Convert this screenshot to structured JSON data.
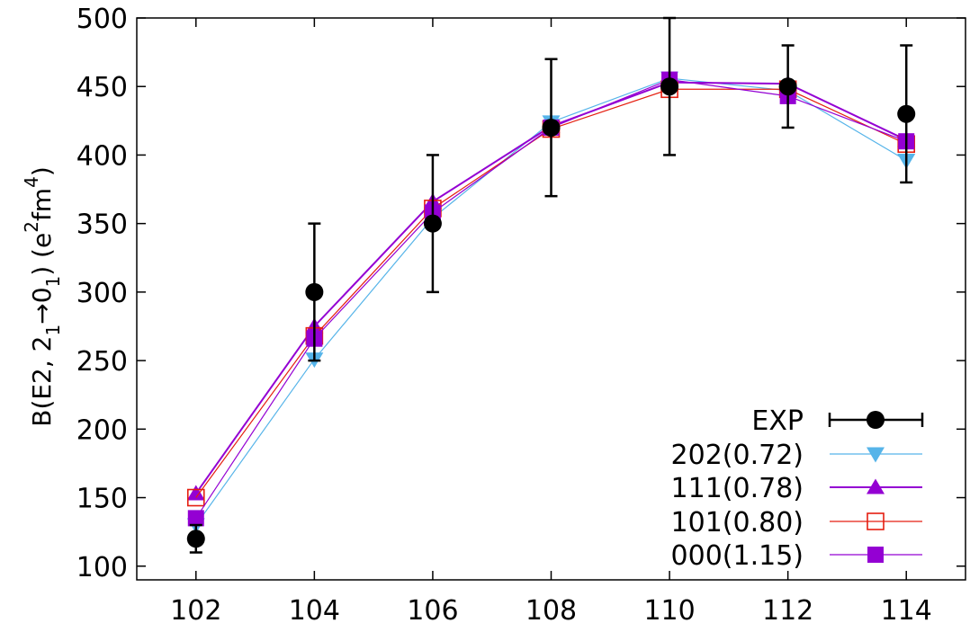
{
  "chart_data": {
    "type": "line",
    "title": "",
    "xlabel": "",
    "ylabel": {
      "base": "B(E2, 2",
      "sub1": "1",
      "arrow": "→0",
      "sub2": "1",
      "mid": ") (e",
      "sup1": "2",
      "fm": "fm",
      "sup2": "4",
      "end": ")"
    },
    "xlim": [
      101,
      115
    ],
    "ylim": [
      90,
      500
    ],
    "x": [
      102,
      104,
      106,
      108,
      110,
      112,
      114
    ],
    "xticks": [
      102,
      104,
      106,
      108,
      110,
      112,
      114
    ],
    "yticks": [
      100,
      150,
      200,
      250,
      300,
      350,
      400,
      450,
      500
    ],
    "grid": false,
    "legend_position": "bottom-right",
    "series": [
      {
        "name": "EXP",
        "color": "#000000",
        "marker": "circle",
        "errorbars": true,
        "line": false,
        "values": [
          120,
          300,
          350,
          420,
          450,
          450,
          430
        ],
        "errors": [
          10,
          50,
          50,
          50,
          50,
          30,
          50
        ]
      },
      {
        "name": "202(0.72)",
        "color": "#56b4e9",
        "marker": "triangle-down",
        "line": true,
        "values": [
          130,
          251,
          354,
          424,
          456,
          447,
          396
        ]
      },
      {
        "name": "111(0.78)",
        "color": "#9400d3",
        "marker": "triangle-up",
        "line": true,
        "values": [
          153,
          275,
          366,
          421,
          453,
          452,
          411
        ]
      },
      {
        "name": "101(0.80)",
        "color": "#e51e10",
        "marker": "square-open",
        "line": true,
        "values": [
          150,
          268,
          361,
          419,
          448,
          448,
          408
        ]
      },
      {
        "name": "000(1.15)",
        "color": "#9400d3",
        "marker": "square",
        "line": true,
        "values": [
          135,
          266,
          358,
          420,
          455,
          443,
          410
        ]
      }
    ]
  }
}
